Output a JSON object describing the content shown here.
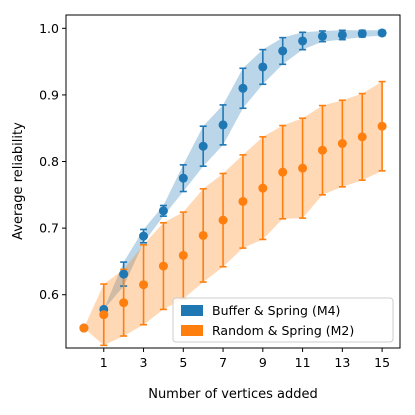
{
  "chart_data": {
    "type": "line",
    "title": "",
    "xlabel": "Number of vertices added",
    "ylabel": "Average reliability",
    "xlim": [
      -0.9,
      15.9
    ],
    "ylim": [
      0.52,
      1.02
    ],
    "xticks": [
      1,
      3,
      5,
      7,
      9,
      11,
      13,
      15
    ],
    "yticks": [
      0.6,
      0.7,
      0.8,
      0.9,
      1.0
    ],
    "ytick_labels": [
      "0.6",
      "0.7",
      "0.8",
      "0.9",
      "1.0"
    ],
    "grid": false,
    "legend_position": "lower-right",
    "series": [
      {
        "name": "Buffer & Spring (M4)",
        "color": "#1f77b4",
        "x": [
          0,
          1,
          2,
          3,
          4,
          5,
          6,
          7,
          8,
          9,
          10,
          11,
          12,
          13,
          14,
          15
        ],
        "y": [
          0.55,
          0.578,
          0.631,
          0.688,
          0.726,
          0.775,
          0.823,
          0.855,
          0.91,
          0.942,
          0.966,
          0.981,
          0.988,
          0.99,
          0.992,
          0.993
        ],
        "err": [
          0,
          0,
          0.018,
          0.01,
          0.008,
          0.02,
          0.03,
          0.03,
          0.03,
          0.026,
          0.02,
          0.013,
          0.008,
          0.007,
          0.005,
          0.004
        ]
      },
      {
        "name": "Random & Spring (M2)",
        "color": "#ff7f0e",
        "x": [
          0,
          1,
          2,
          3,
          4,
          5,
          6,
          7,
          8,
          9,
          10,
          11,
          12,
          13,
          14,
          15
        ],
        "y": [
          0.55,
          0.57,
          0.588,
          0.615,
          0.643,
          0.659,
          0.689,
          0.712,
          0.74,
          0.76,
          0.784,
          0.79,
          0.817,
          0.827,
          0.837,
          0.853
        ],
        "err": [
          0,
          0.046,
          0.05,
          0.06,
          0.065,
          0.065,
          0.07,
          0.07,
          0.07,
          0.077,
          0.07,
          0.075,
          0.067,
          0.065,
          0.065,
          0.067
        ]
      }
    ]
  }
}
